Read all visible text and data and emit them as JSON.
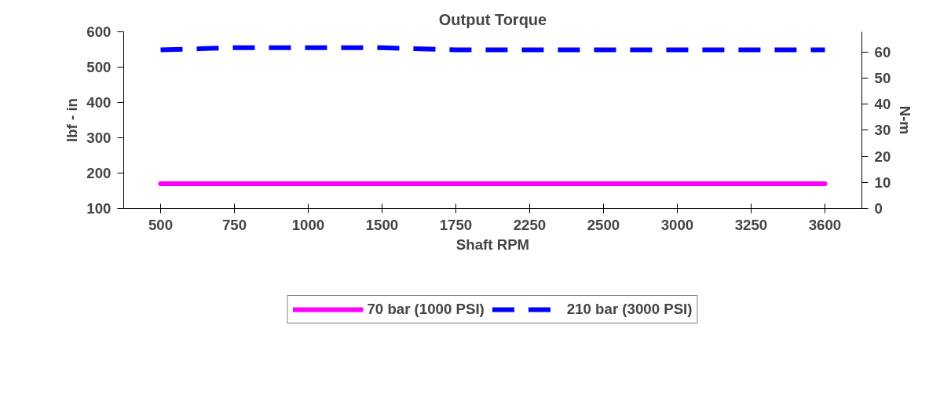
{
  "chart_data": {
    "type": "line",
    "title": "Output Torque",
    "xlabel": "Shaft RPM",
    "ylabel": "lbf - in",
    "y2label": "N-m",
    "categories": [
      "500",
      "750",
      "1000",
      "1500",
      "1750",
      "2250",
      "2500",
      "3000",
      "3250",
      "3600"
    ],
    "ylim": [
      100,
      600
    ],
    "yticks": [
      100,
      200,
      300,
      400,
      500,
      600
    ],
    "y2lim": [
      0,
      67.7
    ],
    "y2ticks": [
      0,
      10,
      20,
      30,
      40,
      50,
      60
    ],
    "grid": false,
    "legend": "bottom",
    "series": [
      {
        "name": "70 bar (1000 PSI)",
        "color": "#ff00ff",
        "line_style": "solid",
        "values": [
          170,
          170,
          170,
          170,
          170,
          170,
          170,
          170,
          170,
          170
        ]
      },
      {
        "name": "210 bar (3000 PSI)",
        "color": "#0000ff",
        "line_style": "dashed",
        "values": [
          549,
          555,
          555,
          555,
          549,
          549,
          549,
          549,
          549,
          549
        ]
      }
    ]
  }
}
